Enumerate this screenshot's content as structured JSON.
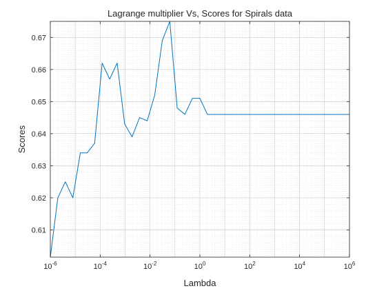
{
  "chart_data": {
    "type": "line",
    "title": "Lagrange multiplier Vs, Scores for Spirals data",
    "xlabel": "Lambda",
    "ylabel": "Scores",
    "xscale": "log",
    "xlim": [
      1e-06,
      1000000
    ],
    "ylim": [
      0.6015,
      0.675
    ],
    "grid": "major and minor",
    "color": "#0072BD",
    "x_ticks": [
      {
        "base": "10",
        "exp": "-6"
      },
      {
        "base": "10",
        "exp": "-4"
      },
      {
        "base": "10",
        "exp": "-2"
      },
      {
        "base": "10",
        "exp": "0"
      },
      {
        "base": "10",
        "exp": "2"
      },
      {
        "base": "10",
        "exp": "4"
      },
      {
        "base": "10",
        "exp": "6"
      }
    ],
    "y_ticks": [
      "0.61",
      "0.62",
      "0.63",
      "0.64",
      "0.65",
      "0.66",
      "0.67"
    ],
    "series": [
      {
        "x": [
          1e-06,
          2e-06,
          4e-06,
          8e-06,
          1.6e-05,
          3e-05,
          6e-05,
          0.00012,
          0.00024,
          0.00048,
          0.00096,
          0.0019,
          0.0038,
          0.0077,
          0.0154,
          0.031,
          0.062,
          0.123,
          0.25,
          0.5,
          1,
          2,
          4,
          8,
          16,
          32,
          64,
          128,
          1000000
        ],
        "y": [
          0.6015,
          0.62,
          0.625,
          0.62,
          0.634,
          0.634,
          0.637,
          0.662,
          0.657,
          0.662,
          0.643,
          0.639,
          0.645,
          0.644,
          0.652,
          0.669,
          0.675,
          0.648,
          0.646,
          0.651,
          0.651,
          0.646,
          0.646,
          0.646,
          0.646,
          0.646,
          0.646,
          0.646,
          0.646
        ]
      }
    ]
  }
}
